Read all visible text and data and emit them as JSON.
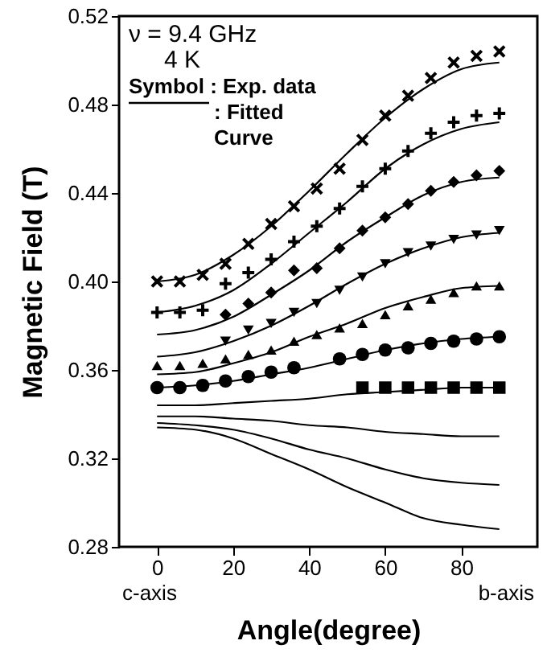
{
  "chart_data": {
    "type": "scatter",
    "xlabel": "Angle(degree)",
    "ylabel": "Magnetic Field (T)",
    "xlim": [
      -10,
      100
    ],
    "xticks": [
      0,
      20,
      40,
      60,
      80
    ],
    "ylim": [
      0.28,
      0.52
    ],
    "yticks": [
      0.28,
      0.32,
      0.36,
      {
        "value": 0.4,
        "label": "0.40"
      },
      0.44,
      0.48,
      0.52
    ],
    "grid": false,
    "annotations": [
      "ν = 9.4 GHz",
      "4 K",
      "Symbol : Exp. data",
      ": Fitted Curve",
      "c-axis",
      "b-axis"
    ],
    "series": [
      {
        "marker": "cross",
        "color": "#000000",
        "x": [
          0,
          6,
          12,
          18,
          24,
          30,
          36,
          42,
          48,
          54,
          60,
          66,
          72,
          78,
          84,
          90
        ],
        "values": [
          0.4,
          0.4,
          0.403,
          0.408,
          0.417,
          0.426,
          0.434,
          0.442,
          0.451,
          0.464,
          0.475,
          0.484,
          0.492,
          0.499,
          0.502,
          0.504
        ]
      },
      {
        "marker": "plus",
        "color": "#000000",
        "x": [
          0,
          6,
          12,
          18,
          24,
          30,
          36,
          42,
          48,
          54,
          60,
          66,
          72,
          78,
          84,
          90
        ],
        "values": [
          0.386,
          0.386,
          0.387,
          0.399,
          0.404,
          0.41,
          0.418,
          0.425,
          0.433,
          0.443,
          0.451,
          0.459,
          0.467,
          0.472,
          0.475,
          0.476
        ]
      },
      {
        "marker": "diamond",
        "color": "#000000",
        "x": [
          18,
          24,
          30,
          36,
          42,
          48,
          54,
          60,
          66,
          72,
          78,
          84,
          90
        ],
        "values": [
          0.385,
          0.39,
          0.395,
          0.405,
          0.406,
          0.415,
          0.423,
          0.429,
          0.435,
          0.441,
          0.445,
          0.448,
          0.45
        ]
      },
      {
        "marker": "triangle-down",
        "color": "#000000",
        "x": [
          18,
          24,
          30,
          36,
          42,
          48,
          54,
          60,
          66,
          72,
          78,
          84,
          90
        ],
        "values": [
          0.373,
          0.378,
          0.381,
          0.386,
          0.39,
          0.396,
          0.402,
          0.408,
          0.413,
          0.416,
          0.419,
          0.421,
          0.423
        ]
      },
      {
        "marker": "triangle",
        "color": "#000000",
        "x": [
          0,
          6,
          12,
          18,
          24,
          30,
          36,
          42,
          48,
          54,
          60,
          66,
          72,
          78,
          84,
          90
        ],
        "values": [
          0.362,
          0.362,
          0.363,
          0.365,
          0.367,
          0.369,
          0.373,
          0.376,
          0.379,
          0.381,
          0.385,
          0.389,
          0.392,
          0.395,
          0.398,
          0.398
        ]
      },
      {
        "marker": "circle",
        "color": "#000000",
        "x": [
          0,
          6,
          12,
          18,
          24,
          30,
          36,
          48,
          54,
          60,
          66,
          72,
          78,
          84,
          90
        ],
        "values": [
          0.352,
          0.352,
          0.353,
          0.355,
          0.357,
          0.359,
          0.361,
          0.365,
          0.367,
          0.369,
          0.37,
          0.372,
          0.373,
          0.374,
          0.375
        ]
      },
      {
        "marker": "square",
        "color": "#000000",
        "x": [
          54,
          60,
          66,
          72,
          78,
          84,
          90
        ],
        "values": [
          0.352,
          0.352,
          0.352,
          0.352,
          0.352,
          0.352,
          0.352
        ]
      },
      {
        "type": "line",
        "color": "#000000",
        "x": [
          0,
          10,
          20,
          30,
          40,
          50,
          60,
          70,
          80,
          90
        ],
        "values": [
          0.4,
          0.403,
          0.412,
          0.425,
          0.441,
          0.458,
          0.474,
          0.487,
          0.496,
          0.499
        ]
      },
      {
        "type": "line",
        "color": "#000000",
        "x": [
          0,
          10,
          20,
          30,
          40,
          50,
          60,
          70,
          80,
          90
        ],
        "values": [
          0.386,
          0.389,
          0.396,
          0.408,
          0.422,
          0.436,
          0.451,
          0.462,
          0.469,
          0.472
        ]
      },
      {
        "type": "line",
        "color": "#000000",
        "x": [
          0,
          10,
          20,
          30,
          40,
          50,
          60,
          70,
          80,
          90
        ],
        "values": [
          0.376,
          0.378,
          0.384,
          0.394,
          0.405,
          0.418,
          0.429,
          0.439,
          0.445,
          0.447
        ]
      },
      {
        "type": "line",
        "color": "#000000",
        "x": [
          0,
          10,
          20,
          30,
          40,
          50,
          60,
          70,
          80,
          90
        ],
        "values": [
          0.366,
          0.368,
          0.373,
          0.38,
          0.389,
          0.399,
          0.408,
          0.415,
          0.42,
          0.422
        ]
      },
      {
        "type": "line",
        "color": "#000000",
        "x": [
          0,
          10,
          20,
          30,
          40,
          50,
          60,
          70,
          80,
          90
        ],
        "values": [
          0.358,
          0.359,
          0.363,
          0.368,
          0.375,
          0.381,
          0.388,
          0.393,
          0.397,
          0.398
        ]
      },
      {
        "type": "line",
        "color": "#000000",
        "x": [
          0,
          10,
          20,
          30,
          40,
          50,
          60,
          70,
          80,
          90
        ],
        "values": [
          0.352,
          0.353,
          0.355,
          0.358,
          0.361,
          0.365,
          0.369,
          0.372,
          0.374,
          0.375
        ]
      },
      {
        "type": "line",
        "color": "#000000",
        "x": [
          0,
          10,
          20,
          30,
          40,
          50,
          60,
          70,
          80,
          90
        ],
        "values": [
          0.344,
          0.344,
          0.345,
          0.346,
          0.347,
          0.349,
          0.35,
          0.351,
          0.352,
          0.352
        ]
      },
      {
        "type": "line",
        "color": "#000000",
        "x": [
          0,
          10,
          20,
          30,
          40,
          50,
          60,
          70,
          80,
          90
        ],
        "values": [
          0.339,
          0.339,
          0.338,
          0.337,
          0.335,
          0.334,
          0.332,
          0.331,
          0.33,
          0.33
        ]
      },
      {
        "type": "line",
        "color": "#000000",
        "x": [
          0,
          10,
          20,
          30,
          40,
          50,
          60,
          70,
          80,
          90
        ],
        "values": [
          0.336,
          0.335,
          0.333,
          0.329,
          0.324,
          0.32,
          0.315,
          0.311,
          0.309,
          0.308
        ]
      },
      {
        "type": "line",
        "color": "#000000",
        "x": [
          0,
          10,
          20,
          30,
          40,
          50,
          60,
          70,
          80,
          90
        ],
        "values": [
          0.334,
          0.333,
          0.329,
          0.322,
          0.315,
          0.307,
          0.3,
          0.293,
          0.29,
          0.288
        ]
      }
    ]
  }
}
